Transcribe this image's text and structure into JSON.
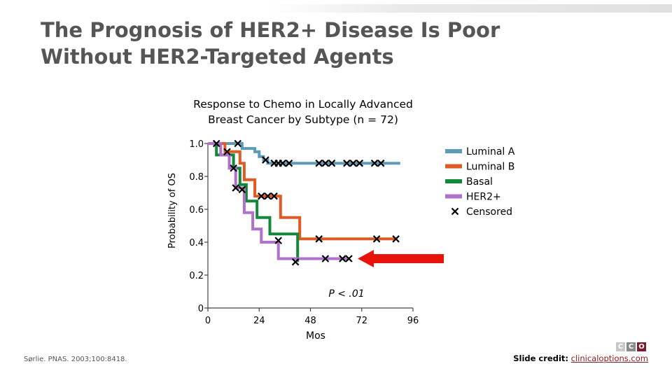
{
  "slide": {
    "title_line1": "The Prognosis of HER2+ Disease Is Poor",
    "title_line2": "Without HER2-Targeted Agents",
    "citation": "Sørlie. PNAS. 2003;100:8418.",
    "credit_label": "Slide credit:",
    "credit_link": "clinicaloptions.com",
    "logo_letters": [
      "C",
      "C",
      "O"
    ],
    "logo_colors": [
      "#c8c8c8",
      "#8a8a8a",
      "#7a1c2e"
    ]
  },
  "chart_data": {
    "type": "line",
    "subtype": "kaplan-meier",
    "title_line1": "Response to Chemo in Locally Advanced",
    "title_line2": "Breast Cancer by Subtype (n = 72)",
    "ylabel": "Probability of OS",
    "xlabel": "Mos",
    "xlim": [
      0,
      96
    ],
    "ylim": [
      0,
      1.0
    ],
    "x_ticks": [
      0,
      24,
      48,
      72,
      96
    ],
    "x_tick_labels": [
      "0",
      "24",
      "48",
      "72",
      "96"
    ],
    "y_ticks": [
      0,
      0.2,
      0.4,
      0.6,
      0.8,
      1.0
    ],
    "y_tick_labels": [
      "0",
      "0.2",
      "0.4",
      "0.6",
      "0.8",
      "1.0"
    ],
    "annotation": "P < .01",
    "arrow_color": "#e8140c",
    "censored_legend": "Censored",
    "series": [
      {
        "name": "Luminal A",
        "color": "#5b9bb5",
        "steps": [
          [
            0,
            1.0
          ],
          [
            16,
            1.0
          ],
          [
            16,
            0.97
          ],
          [
            22,
            0.97
          ],
          [
            22,
            0.95
          ],
          [
            24,
            0.95
          ],
          [
            24,
            0.92
          ],
          [
            26,
            0.92
          ],
          [
            26,
            0.9
          ],
          [
            28,
            0.9
          ],
          [
            28,
            0.88
          ],
          [
            90,
            0.88
          ]
        ],
        "censored": [
          [
            4,
            1.0
          ],
          [
            14,
            1.0
          ],
          [
            27,
            0.9
          ],
          [
            31,
            0.88
          ],
          [
            33,
            0.88
          ],
          [
            35,
            0.88
          ],
          [
            38,
            0.88
          ],
          [
            52,
            0.88
          ],
          [
            55,
            0.88
          ],
          [
            58,
            0.88
          ],
          [
            65,
            0.88
          ],
          [
            68,
            0.88
          ],
          [
            71,
            0.88
          ],
          [
            78,
            0.88
          ],
          [
            81,
            0.88
          ]
        ]
      },
      {
        "name": "Luminal B",
        "color": "#e05a22",
        "steps": [
          [
            0,
            1.0
          ],
          [
            8,
            1.0
          ],
          [
            8,
            0.95
          ],
          [
            15,
            0.95
          ],
          [
            15,
            0.88
          ],
          [
            17,
            0.88
          ],
          [
            17,
            0.78
          ],
          [
            22,
            0.78
          ],
          [
            22,
            0.68
          ],
          [
            34,
            0.68
          ],
          [
            34,
            0.55
          ],
          [
            43,
            0.55
          ],
          [
            43,
            0.42
          ],
          [
            88,
            0.42
          ]
        ],
        "censored": [
          [
            9,
            0.95
          ],
          [
            25,
            0.68
          ],
          [
            28,
            0.68
          ],
          [
            31,
            0.68
          ],
          [
            52,
            0.42
          ],
          [
            79,
            0.42
          ],
          [
            88,
            0.42
          ]
        ]
      },
      {
        "name": "Basal",
        "color": "#12883a",
        "steps": [
          [
            0,
            1.0
          ],
          [
            4,
            1.0
          ],
          [
            4,
            0.93
          ],
          [
            12,
            0.93
          ],
          [
            12,
            0.85
          ],
          [
            15,
            0.85
          ],
          [
            15,
            0.75
          ],
          [
            18,
            0.75
          ],
          [
            18,
            0.65
          ],
          [
            23,
            0.65
          ],
          [
            23,
            0.55
          ],
          [
            29,
            0.55
          ],
          [
            29,
            0.45
          ],
          [
            42,
            0.45
          ],
          [
            42,
            0.32
          ],
          [
            42,
            0.3
          ],
          [
            42,
            0.28
          ]
        ],
        "censored": [
          [
            12,
            0.85
          ],
          [
            41,
            0.28
          ]
        ]
      },
      {
        "name": "HER2+",
        "color": "#b070cc",
        "steps": [
          [
            0,
            1.0
          ],
          [
            6,
            1.0
          ],
          [
            6,
            0.93
          ],
          [
            10,
            0.93
          ],
          [
            10,
            0.85
          ],
          [
            13,
            0.85
          ],
          [
            13,
            0.73
          ],
          [
            17,
            0.73
          ],
          [
            17,
            0.58
          ],
          [
            21,
            0.58
          ],
          [
            21,
            0.48
          ],
          [
            25,
            0.48
          ],
          [
            25,
            0.4
          ],
          [
            33,
            0.4
          ],
          [
            33,
            0.3
          ],
          [
            66,
            0.3
          ]
        ],
        "censored": [
          [
            13,
            0.73
          ],
          [
            16,
            0.72
          ],
          [
            33,
            0.41
          ],
          [
            55,
            0.3
          ],
          [
            63,
            0.3
          ],
          [
            66,
            0.3
          ]
        ]
      }
    ]
  }
}
